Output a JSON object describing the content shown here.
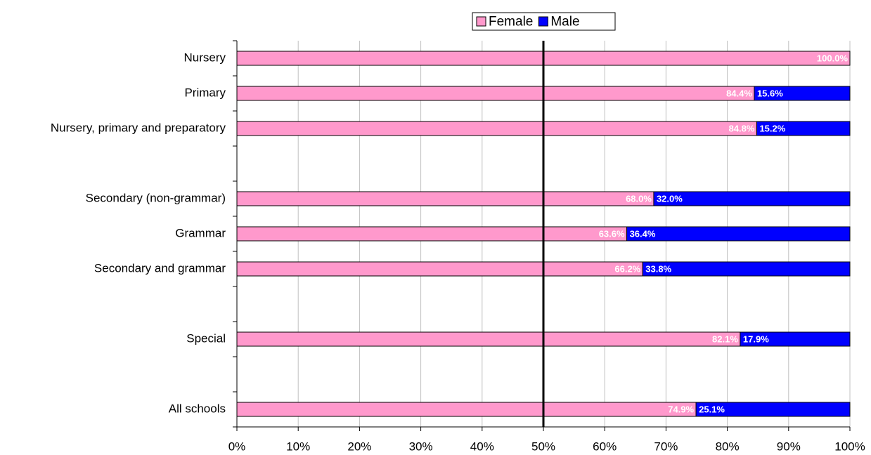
{
  "chart_data": {
    "type": "stacked_barh",
    "categories": [
      "Nursery",
      "Primary",
      "Nursery, primary and preparatory",
      null,
      "Secondary (non-grammar)",
      "Grammar",
      "Secondary and grammar",
      null,
      "Special",
      null,
      "All schools"
    ],
    "series": [
      {
        "name": "Female",
        "color": "#ff99cc",
        "values": [
          100.0,
          84.4,
          84.8,
          null,
          68.0,
          63.6,
          66.2,
          null,
          82.1,
          null,
          74.9
        ],
        "value_labels": [
          "100.0%",
          "84.4%",
          "84.8%",
          null,
          "68.0%",
          "63.6%",
          "66.2%",
          null,
          "82.1%",
          null,
          "74.9%"
        ]
      },
      {
        "name": "Male",
        "color": "#0000ff",
        "values": [
          0,
          15.6,
          15.2,
          null,
          32.0,
          36.4,
          33.8,
          null,
          17.9,
          null,
          25.1
        ],
        "value_labels": [
          null,
          "15.6%",
          "15.2%",
          null,
          "32.0%",
          "36.4%",
          "33.8%",
          null,
          "17.9%",
          null,
          "25.1%"
        ]
      }
    ],
    "xlim": [
      0,
      100
    ],
    "xticks": [
      {
        "value": 0,
        "label": "0%"
      },
      {
        "value": 10,
        "label": "10%"
      },
      {
        "value": 20,
        "label": "20%"
      },
      {
        "value": 30,
        "label": "30%"
      },
      {
        "value": 40,
        "label": "40%"
      },
      {
        "value": 50,
        "label": "50%"
      },
      {
        "value": 60,
        "label": "60%"
      },
      {
        "value": 70,
        "label": "70%"
      },
      {
        "value": 80,
        "label": "80%"
      },
      {
        "value": 90,
        "label": "90%"
      },
      {
        "value": 100,
        "label": "100%"
      }
    ],
    "grid": true,
    "reference_line": 50,
    "legend": "top"
  }
}
